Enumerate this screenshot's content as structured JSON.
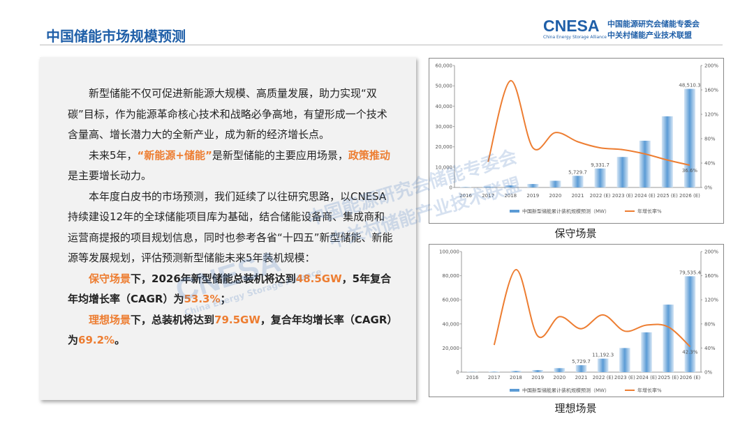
{
  "header": {
    "title": "中国储能市场规模预测"
  },
  "logo": {
    "brand": "CNESA",
    "brand_en": "China Energy Storage Alliance",
    "org1": "中国能源研究会储能专委会",
    "org2": "中关村储能产业技术联盟"
  },
  "watermark": {
    "brand": "CNESA",
    "brand_en": "China Energy Storage Alliance",
    "text1": "中国能源研究会储能专委会",
    "text2": "中关村储能产业技术联盟"
  },
  "body": {
    "paragraphs": [
      [
        {
          "text": "新型储能不仅可促进新能源大规模、高质量发展，助力实现“双碳”目标，作为能源革命核心技术和战略必争高地，有望形成一个技术含量高、增长潜力大的全新产业，成为新的经济增长点。"
        }
      ],
      [
        {
          "text": "未来5年，"
        },
        {
          "text": "“新能源+储能”",
          "bold": true,
          "color": "#ed7d31"
        },
        {
          "text": "是新型储能的主要应用场景，"
        },
        {
          "text": "政策推动",
          "bold": true,
          "color": "#ed7d31"
        },
        {
          "text": "是主要增长动力。"
        }
      ],
      [
        {
          "text": "本年度白皮书的市场预测，我们延续了以往研究思路，以CNESA持续建设12年的全球储能项目库为基础，结合储能设备商、集成商和运营商提报的项目规划信息，同时也参考各省“十四五”新型储能、新能源等发展规划，评估预测新型储能未来5年装机规模："
        }
      ],
      [
        {
          "text": "保守场景",
          "bold": true,
          "color": "#ed7d31"
        },
        {
          "text": "下，2026年新型储能总装机将达到",
          "bold": true
        },
        {
          "text": "48.5GW",
          "bold": true,
          "color": "#ed7d31"
        },
        {
          "text": "，5年复合年均增长率（CAGR）为",
          "bold": true
        },
        {
          "text": "53.3%",
          "bold": true,
          "color": "#ed7d31"
        },
        {
          "text": "；",
          "bold": true
        }
      ],
      [
        {
          "text": "理想场景",
          "bold": true,
          "color": "#ed7d31"
        },
        {
          "text": "下，总装机将达到",
          "bold": true
        },
        {
          "text": "79.5GW",
          "bold": true,
          "color": "#ed7d31"
        },
        {
          "text": "，复合年均增长率（CAGR）为",
          "bold": true
        },
        {
          "text": "69.2%",
          "bold": true,
          "color": "#ed7d31"
        },
        {
          "text": "。",
          "bold": true
        }
      ]
    ]
  },
  "chart_data": [
    {
      "type": "bar_line",
      "caption": "保守场景",
      "categories": [
        "2016",
        "2017",
        "2018",
        "2019",
        "2020",
        "2021",
        "2022 (E)",
        "2023 (E)",
        "2024 (E)",
        "2025 (E)",
        "2026 (E)"
      ],
      "series": [
        {
          "name": "中国新型储能累计装机规模预测（MW）",
          "color": "#5b9bd5",
          "values": [
            200,
            400,
            1000,
            1700,
            3300,
            5729.7,
            9331.7,
            15000,
            23000,
            35000,
            48510.3
          ],
          "value_labels": [
            null,
            null,
            null,
            null,
            null,
            "5,729.7",
            "9,331.7",
            null,
            null,
            null,
            "48,510.3"
          ]
        },
        {
          "name": "年增长率%",
          "color": "#ed7d31",
          "axis": "y2",
          "values": [
            null,
            42,
            175,
            65,
            90,
            75,
            65,
            62,
            55,
            45,
            36.6
          ],
          "value_labels": [
            null,
            null,
            null,
            null,
            null,
            null,
            null,
            null,
            null,
            null,
            "36.6%"
          ]
        }
      ],
      "ylim": [
        0,
        60000
      ],
      "yticks": [
        0,
        {
          "value": 10000,
          "label": "10,000"
        },
        {
          "value": 20000,
          "label": "20,000"
        },
        {
          "value": 30000,
          "label": "30,000"
        },
        {
          "value": 40000,
          "label": "40,000"
        },
        {
          "value": 50000,
          "label": "50,000"
        },
        {
          "value": 60000,
          "label": "60,000"
        }
      ],
      "y2lim": [
        0,
        200
      ],
      "y2ticks": [
        {
          "value": 0,
          "label": "0%"
        },
        {
          "value": 40,
          "label": "40%"
        },
        {
          "value": 80,
          "label": "80%"
        },
        {
          "value": 120,
          "label": "120%"
        },
        {
          "value": 160,
          "label": "160%"
        },
        {
          "value": 200,
          "label": "200%"
        }
      ]
    },
    {
      "type": "bar_line",
      "caption": "理想场景",
      "categories": [
        "2016",
        "2017",
        "2018",
        "2019",
        "2020",
        "2021",
        "2022 (E)",
        "2023 (E)",
        "2024 (E)",
        "2025 (E)",
        "2026 (E)"
      ],
      "series": [
        {
          "name": "中国新型储能累计装机规模预测（MW）",
          "color": "#5b9bd5",
          "values": [
            200,
            400,
            1000,
            1700,
            3300,
            5729.7,
            11192.3,
            20000,
            33000,
            56000,
            79535.4
          ],
          "value_labels": [
            null,
            null,
            null,
            null,
            null,
            "5,729.7",
            "11,192.3",
            null,
            null,
            null,
            "79,535.4"
          ]
        },
        {
          "name": "年增长率%",
          "color": "#ed7d31",
          "axis": "y2",
          "values": [
            null,
            45,
            170,
            60,
            92,
            72,
            95,
            68,
            78,
            75,
            42.3
          ],
          "value_labels": [
            null,
            null,
            null,
            null,
            null,
            null,
            null,
            null,
            null,
            null,
            "42.3%"
          ]
        }
      ],
      "ylim": [
        0,
        100000
      ],
      "yticks": [
        0,
        {
          "value": 20000,
          "label": "20,000"
        },
        {
          "value": 40000,
          "label": "40,000"
        },
        {
          "value": 60000,
          "label": "60,000"
        },
        {
          "value": 80000,
          "label": "80,000"
        },
        {
          "value": 100000,
          "label": "100,000"
        }
      ],
      "y2lim": [
        0,
        200
      ],
      "y2ticks": [
        {
          "value": 0,
          "label": "0%"
        },
        {
          "value": 40,
          "label": "40%"
        },
        {
          "value": 80,
          "label": "80%"
        },
        {
          "value": 120,
          "label": "120%"
        },
        {
          "value": 160,
          "label": "160%"
        },
        {
          "value": 200,
          "label": "200%"
        }
      ]
    }
  ]
}
